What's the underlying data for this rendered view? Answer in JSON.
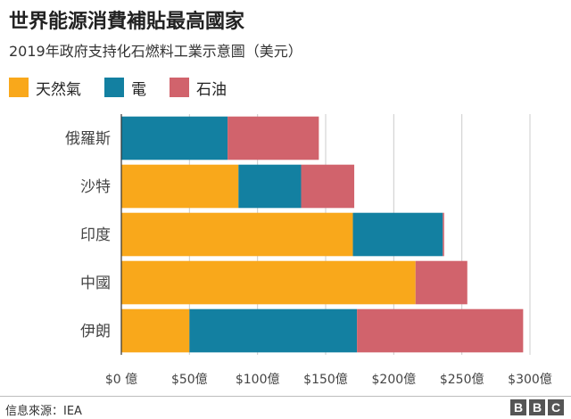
{
  "header": {
    "title": "世界能源消費補貼最高國家",
    "subtitle": "2019年政府支持化石燃料工業示意圖（美元）"
  },
  "footer": {
    "source": "信息來源：IEA",
    "logo": [
      "B",
      "B",
      "C"
    ]
  },
  "chart_data": {
    "type": "bar",
    "orientation": "horizontal",
    "stacked": true,
    "categories": [
      "俄羅斯",
      "沙特",
      "印度",
      "中國",
      "伊朗"
    ],
    "series": [
      {
        "name": "天然氣",
        "color": "#f9a81b",
        "values": [
          0,
          86,
          170,
          216,
          50
        ]
      },
      {
        "name": "電",
        "color": "#1380a1",
        "values": [
          78,
          46,
          66,
          0,
          123
        ]
      },
      {
        "name": "石油",
        "color": "#d1636c",
        "values": [
          67,
          39,
          1,
          38,
          122
        ]
      }
    ],
    "xlim": [
      0,
      300
    ],
    "xticks": [
      0,
      50,
      100,
      150,
      200,
      250,
      300
    ],
    "xtick_labels": [
      "$0 億",
      "$50億",
      "$100億",
      "$150億",
      "$200億",
      "$250億",
      "$300億"
    ],
    "grid": true,
    "legend_position": "top-left"
  }
}
